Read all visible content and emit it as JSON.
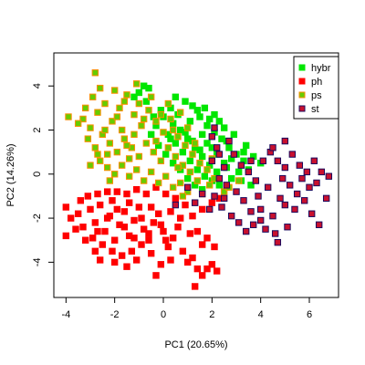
{
  "chart_data": {
    "type": "scatter",
    "xlabel": "PC1 (20.65%)",
    "ylabel": "PC2 (14.26%)",
    "xlim": [
      -4.5,
      7.2
    ],
    "ylim": [
      -5.6,
      5.5
    ],
    "xticks": [
      -4,
      -2,
      0,
      2,
      4,
      6
    ],
    "yticks": [
      -4,
      -2,
      0,
      2,
      4
    ],
    "grid": false,
    "legend_position": "top-right",
    "series": [
      {
        "name": "hybr",
        "fill": "#00e600",
        "edge": "#00e600",
        "points": [
          [
            1.2,
            3.1
          ],
          [
            1.5,
            2.6
          ],
          [
            1.8,
            2.2
          ],
          [
            2.1,
            1.9
          ],
          [
            2.4,
            1.6
          ],
          [
            2.7,
            1.2
          ],
          [
            3.0,
            0.9
          ],
          [
            3.3,
            0.6
          ],
          [
            2.6,
            0.3
          ],
          [
            2.2,
            0.1
          ],
          [
            1.9,
            0.4
          ],
          [
            1.6,
            0.8
          ],
          [
            1.3,
            1.2
          ],
          [
            1.0,
            1.6
          ],
          [
            0.7,
            2.0
          ],
          [
            0.4,
            2.3
          ],
          [
            0.2,
            1.8
          ],
          [
            0.5,
            1.4
          ],
          [
            0.8,
            1.0
          ],
          [
            1.1,
            0.6
          ],
          [
            1.4,
            0.2
          ],
          [
            1.7,
            -0.1
          ],
          [
            2.0,
            -0.3
          ],
          [
            2.3,
            -0.5
          ],
          [
            2.8,
            -0.2
          ],
          [
            3.2,
            -0.3
          ],
          [
            3.5,
            0.2
          ],
          [
            3.7,
            0.8
          ],
          [
            4.0,
            0.5
          ],
          [
            3.4,
            1.3
          ],
          [
            2.9,
            1.8
          ],
          [
            2.5,
            2.1
          ],
          [
            1.9,
            2.5
          ],
          [
            1.4,
            2.9
          ],
          [
            0.9,
            3.3
          ],
          [
            -0.6,
            3.9
          ],
          [
            -1.0,
            3.7
          ],
          [
            -0.8,
            4.0
          ],
          [
            0.3,
            3.0
          ],
          [
            0.0,
            2.6
          ],
          [
            -0.3,
            2.2
          ],
          [
            -0.5,
            1.8
          ],
          [
            -0.2,
            1.3
          ],
          [
            0.1,
            0.9
          ],
          [
            0.4,
            0.5
          ],
          [
            0.7,
            0.2
          ],
          [
            1.0,
            -0.2
          ],
          [
            1.3,
            -0.5
          ],
          [
            1.6,
            -0.7
          ],
          [
            0.6,
            2.7
          ],
          [
            1.8,
            1.4
          ],
          [
            2.2,
            0.9
          ],
          [
            2.5,
            0.5
          ],
          [
            3.1,
            0.1
          ],
          [
            3.6,
            -0.5
          ],
          [
            0.9,
            1.9
          ],
          [
            1.2,
            1.5
          ],
          [
            1.5,
            1.1
          ],
          [
            2.0,
            1.2
          ],
          [
            2.3,
            2.4
          ],
          [
            1.7,
            3.0
          ],
          [
            -0.1,
            2.9
          ],
          [
            -0.7,
            3.3
          ],
          [
            -1.2,
            3.5
          ],
          [
            0.5,
            3.5
          ],
          [
            2.8,
            0.7
          ],
          [
            3.3,
            1.0
          ],
          [
            1.1,
            2.4
          ],
          [
            0.3,
            1.6
          ],
          [
            -0.4,
            2.6
          ],
          [
            1.6,
            1.8
          ],
          [
            2.1,
            2.7
          ],
          [
            2.6,
            1.5
          ]
        ]
      },
      {
        "name": "ph",
        "fill": "#ff0000",
        "edge": "#ff0000",
        "points": [
          [
            -4.0,
            -1.5
          ],
          [
            -4.0,
            -2.8
          ],
          [
            -3.8,
            -2.0
          ],
          [
            -3.5,
            -1.8
          ],
          [
            -3.3,
            -2.4
          ],
          [
            -3.0,
            -1.6
          ],
          [
            -2.8,
            -2.2
          ],
          [
            -2.6,
            -1.4
          ],
          [
            -2.4,
            -2.6
          ],
          [
            -2.2,
            -1.9
          ],
          [
            -2.0,
            -3.0
          ],
          [
            -1.8,
            -2.3
          ],
          [
            -1.6,
            -1.7
          ],
          [
            -1.4,
            -2.8
          ],
          [
            -1.2,
            -2.1
          ],
          [
            -1.0,
            -1.5
          ],
          [
            -0.8,
            -2.5
          ],
          [
            -0.6,
            -3.0
          ],
          [
            -0.4,
            -2.2
          ],
          [
            -0.2,
            -1.8
          ],
          [
            0.0,
            -2.6
          ],
          [
            0.2,
            -3.3
          ],
          [
            0.4,
            -2.9
          ],
          [
            0.6,
            -2.4
          ],
          [
            0.8,
            -3.5
          ],
          [
            1.0,
            -4.0
          ],
          [
            1.2,
            -3.8
          ],
          [
            1.4,
            -4.3
          ],
          [
            1.6,
            -4.6
          ],
          [
            1.8,
            -4.3
          ],
          [
            2.0,
            -4.1
          ],
          [
            1.3,
            -5.1
          ],
          [
            2.1,
            -3.3
          ],
          [
            1.8,
            -2.9
          ],
          [
            1.4,
            -2.6
          ],
          [
            1.2,
            -1.9
          ],
          [
            1.6,
            -1.6
          ],
          [
            2.0,
            -1.3
          ],
          [
            2.3,
            -1.1
          ],
          [
            -3.1,
            -1.0
          ],
          [
            -2.7,
            -0.9
          ],
          [
            -2.3,
            -0.8
          ],
          [
            -1.9,
            -0.8
          ],
          [
            -1.5,
            -0.9
          ],
          [
            -1.1,
            -0.7
          ],
          [
            -0.7,
            -0.9
          ],
          [
            -0.3,
            -0.6
          ],
          [
            0.1,
            -0.9
          ],
          [
            0.5,
            -1.1
          ],
          [
            -2.9,
            -2.9
          ],
          [
            -2.5,
            -3.2
          ],
          [
            -2.1,
            -3.5
          ],
          [
            -1.7,
            -3.7
          ],
          [
            -1.3,
            -3.5
          ],
          [
            -0.9,
            -3.2
          ],
          [
            -0.5,
            -3.6
          ],
          [
            -1.5,
            -4.2
          ],
          [
            -2.0,
            -4.0
          ],
          [
            -0.1,
            -4.1
          ],
          [
            0.3,
            -3.9
          ],
          [
            -3.6,
            -2.5
          ],
          [
            -3.2,
            -3.0
          ],
          [
            -2.8,
            -3.5
          ],
          [
            -2.3,
            -2.0
          ],
          [
            -1.9,
            -1.6
          ],
          [
            -1.6,
            -2.4
          ],
          [
            -1.2,
            -2.9
          ],
          [
            -0.9,
            -2.0
          ],
          [
            -0.5,
            -1.5
          ],
          [
            -0.1,
            -2.3
          ],
          [
            0.3,
            -1.7
          ],
          [
            0.7,
            -2.0
          ],
          [
            0.9,
            -1.4
          ],
          [
            -2.6,
            -3.9
          ],
          [
            -1.1,
            -3.9
          ],
          [
            -0.3,
            -4.6
          ],
          [
            1.6,
            -3.2
          ],
          [
            1.1,
            -2.7
          ],
          [
            -3.4,
            -1.2
          ],
          [
            -2.1,
            -1.2
          ],
          [
            -0.6,
            -2.7
          ],
          [
            0.1,
            -3.0
          ],
          [
            2.2,
            -4.4
          ],
          [
            -1.4,
            -1.3
          ],
          [
            -2.7,
            -2.6
          ]
        ]
      },
      {
        "name": "ps",
        "fill": "#66cc00",
        "edge": "#ff8c00",
        "points": [
          [
            -2.8,
            4.6
          ],
          [
            -3.3,
            2.5
          ],
          [
            -3.0,
            2.1
          ],
          [
            -2.7,
            2.8
          ],
          [
            -2.4,
            3.2
          ],
          [
            -2.1,
            2.4
          ],
          [
            -1.8,
            3.0
          ],
          [
            -1.5,
            3.6
          ],
          [
            -1.2,
            2.7
          ],
          [
            -0.9,
            2.2
          ],
          [
            -0.6,
            2.9
          ],
          [
            -0.3,
            2.4
          ],
          [
            0.0,
            1.9
          ],
          [
            0.3,
            2.5
          ],
          [
            0.6,
            1.7
          ],
          [
            0.9,
            1.3
          ],
          [
            1.2,
            0.9
          ],
          [
            1.5,
            0.5
          ],
          [
            1.8,
            0.2
          ],
          [
            2.1,
            -0.2
          ],
          [
            -3.1,
            1.6
          ],
          [
            -2.8,
            1.2
          ],
          [
            -2.5,
            1.8
          ],
          [
            -2.2,
            1.4
          ],
          [
            -1.9,
            1.0
          ],
          [
            -1.6,
            1.6
          ],
          [
            -1.3,
            1.2
          ],
          [
            -1.0,
            0.8
          ],
          [
            -0.7,
            1.4
          ],
          [
            -0.4,
            1.0
          ],
          [
            -0.1,
            0.6
          ],
          [
            0.2,
            1.2
          ],
          [
            0.5,
            0.8
          ],
          [
            0.8,
            0.4
          ],
          [
            1.1,
            0.1
          ],
          [
            1.4,
            -0.3
          ],
          [
            -2.6,
            0.6
          ],
          [
            -2.3,
            0.3
          ],
          [
            -2.0,
            0.0
          ],
          [
            -1.7,
            0.4
          ],
          [
            -1.4,
            -0.1
          ],
          [
            -1.1,
            0.2
          ],
          [
            -0.8,
            -0.3
          ],
          [
            -0.5,
            0.1
          ],
          [
            -0.2,
            -0.4
          ],
          [
            0.1,
            -0.1
          ],
          [
            0.4,
            -0.6
          ],
          [
            0.7,
            -0.4
          ],
          [
            1.0,
            -0.8
          ],
          [
            1.6,
            -0.9
          ],
          [
            2.5,
            -0.8
          ],
          [
            3.1,
            -0.3
          ],
          [
            -3.5,
            2.3
          ],
          [
            -3.2,
            3.0
          ],
          [
            -2.9,
            3.5
          ],
          [
            -2.0,
            3.8
          ],
          [
            -1.7,
            2.0
          ],
          [
            -1.0,
            3.2
          ],
          [
            -0.5,
            3.5
          ],
          [
            0.2,
            3.2
          ],
          [
            0.7,
            2.8
          ],
          [
            -2.4,
            2.0
          ],
          [
            -1.2,
            1.8
          ],
          [
            0.4,
            2.0
          ],
          [
            1.0,
            2.1
          ],
          [
            -0.3,
            1.5
          ],
          [
            -2.7,
            0.9
          ],
          [
            -1.9,
            2.6
          ],
          [
            -1.4,
            0.7
          ],
          [
            -0.8,
            2.5
          ],
          [
            0.6,
            0.3
          ],
          [
            1.3,
            1.4
          ],
          [
            2.0,
            0.7
          ],
          [
            -3.0,
            0.4
          ],
          [
            -2.2,
            -0.3
          ],
          [
            0.8,
            -1.0
          ],
          [
            1.9,
            -0.5
          ],
          [
            2.7,
            -0.6
          ],
          [
            -1.6,
            3.3
          ],
          [
            -0.1,
            2.7
          ],
          [
            -3.9,
            2.6
          ],
          [
            -2.6,
            3.9
          ],
          [
            -1.1,
            4.1
          ],
          [
            -2.3,
            0.9
          ],
          [
            -1.5,
            1.3
          ]
        ]
      },
      {
        "name": "st",
        "fill": "#c8102e",
        "edge": "#1a0a5e",
        "points": [
          [
            2.2,
            1.2
          ],
          [
            2.0,
            0.6
          ],
          [
            2.5,
            0.3
          ],
          [
            2.9,
            0.9
          ],
          [
            3.2,
            0.4
          ],
          [
            3.5,
            0.1
          ],
          [
            3.8,
            -0.3
          ],
          [
            4.1,
            0.6
          ],
          [
            4.4,
            1.0
          ],
          [
            4.7,
            0.6
          ],
          [
            5.0,
            0.3
          ],
          [
            5.3,
            0.9
          ],
          [
            5.6,
            0.4
          ],
          [
            5.9,
            0.1
          ],
          [
            6.2,
            0.6
          ],
          [
            6.5,
            0.1
          ],
          [
            6.8,
            -0.1
          ],
          [
            6.0,
            -0.6
          ],
          [
            5.5,
            -0.9
          ],
          [
            5.0,
            -1.4
          ],
          [
            4.5,
            -1.9
          ],
          [
            4.0,
            -2.1
          ],
          [
            3.6,
            -1.7
          ],
          [
            3.3,
            -1.2
          ],
          [
            3.0,
            -0.8
          ],
          [
            2.6,
            -0.5
          ],
          [
            2.3,
            -0.2
          ],
          [
            2.1,
            -1.0
          ],
          [
            2.4,
            -1.5
          ],
          [
            2.8,
            -1.9
          ],
          [
            3.1,
            -2.2
          ],
          [
            3.4,
            -2.6
          ],
          [
            3.7,
            -2.3
          ],
          [
            4.2,
            -2.5
          ],
          [
            4.6,
            -2.7
          ],
          [
            5.1,
            -2.4
          ],
          [
            5.4,
            -1.6
          ],
          [
            5.8,
            -1.2
          ],
          [
            6.1,
            -1.8
          ],
          [
            6.4,
            -2.3
          ],
          [
            6.7,
            -1.1
          ],
          [
            6.3,
            -0.4
          ],
          [
            4.9,
            -0.2
          ],
          [
            4.3,
            -0.6
          ],
          [
            3.9,
            -1.0
          ],
          [
            4.8,
            -1.1
          ],
          [
            5.2,
            -0.5
          ],
          [
            5.7,
            -0.2
          ],
          [
            1.6,
            -0.9
          ],
          [
            1.9,
            -1.6
          ],
          [
            2.0,
            1.7
          ],
          [
            2.1,
            2.1
          ],
          [
            2.3,
            0.9
          ],
          [
            2.7,
            1.5
          ],
          [
            4.5,
            1.2
          ],
          [
            5.0,
            1.5
          ],
          [
            3.6,
            0.6
          ],
          [
            4.0,
            -1.6
          ],
          [
            4.7,
            -3.1
          ],
          [
            2.5,
            -1.1
          ],
          [
            0.5,
            -1.4
          ],
          [
            1.0,
            -0.6
          ],
          [
            1.3,
            -1.3
          ]
        ]
      }
    ]
  }
}
